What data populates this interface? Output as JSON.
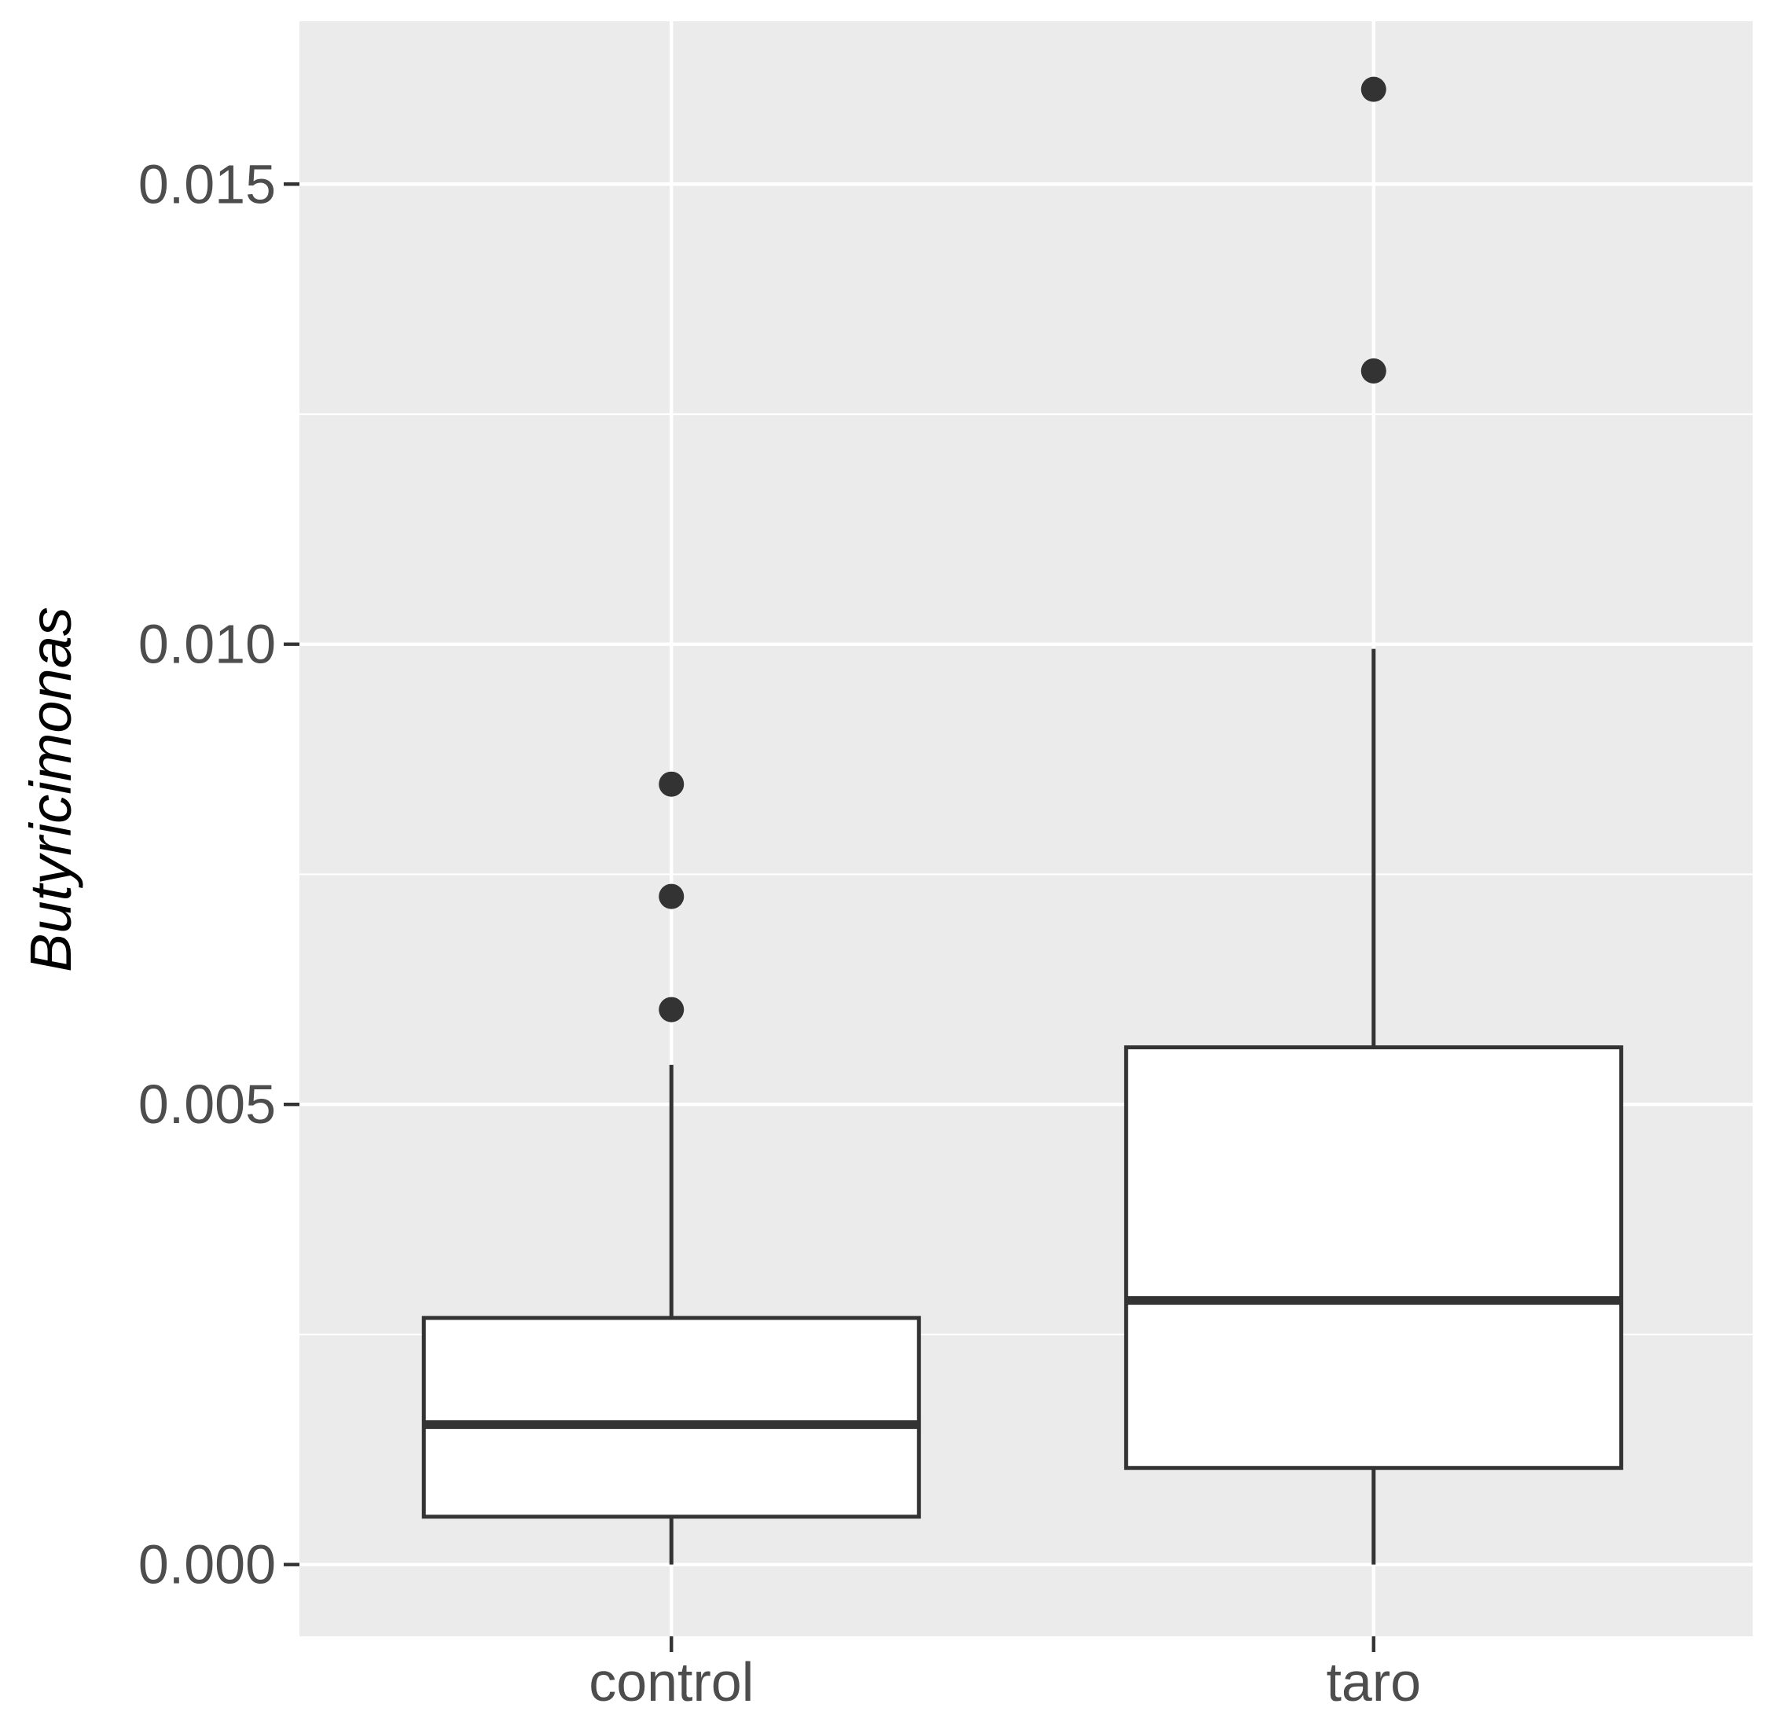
{
  "chart_data": {
    "type": "boxplot",
    "title": "",
    "xlabel": "",
    "ylabel": "Butyricimonas",
    "categories": [
      "control",
      "taro"
    ],
    "ylim": [
      -0.00078,
      0.01677
    ],
    "y_ticks": [
      0.0,
      0.005,
      0.01,
      0.015
    ],
    "y_tick_labels": [
      "0.000",
      "0.005",
      "0.010",
      "0.015"
    ],
    "grid": true,
    "legend": "none",
    "boxes": [
      {
        "category": "control",
        "whisker_low": 0.0,
        "q1": 0.00052,
        "median": 0.00152,
        "q3": 0.00268,
        "whisker_high": 0.00543,
        "outliers": [
          0.00603,
          0.00726,
          0.00848
        ]
      },
      {
        "category": "taro",
        "whisker_low": 0.0,
        "q1": 0.00105,
        "median": 0.00287,
        "q3": 0.00562,
        "whisker_high": 0.00995,
        "outliers": [
          0.01297,
          0.01603
        ]
      }
    ],
    "colors": {
      "panel": "#ebebeb",
      "grid": "#ffffff",
      "box_fill": "#ffffff",
      "box_stroke": "#333333",
      "tick_text": "#4d4d4d",
      "axis_title": "#000000"
    }
  }
}
